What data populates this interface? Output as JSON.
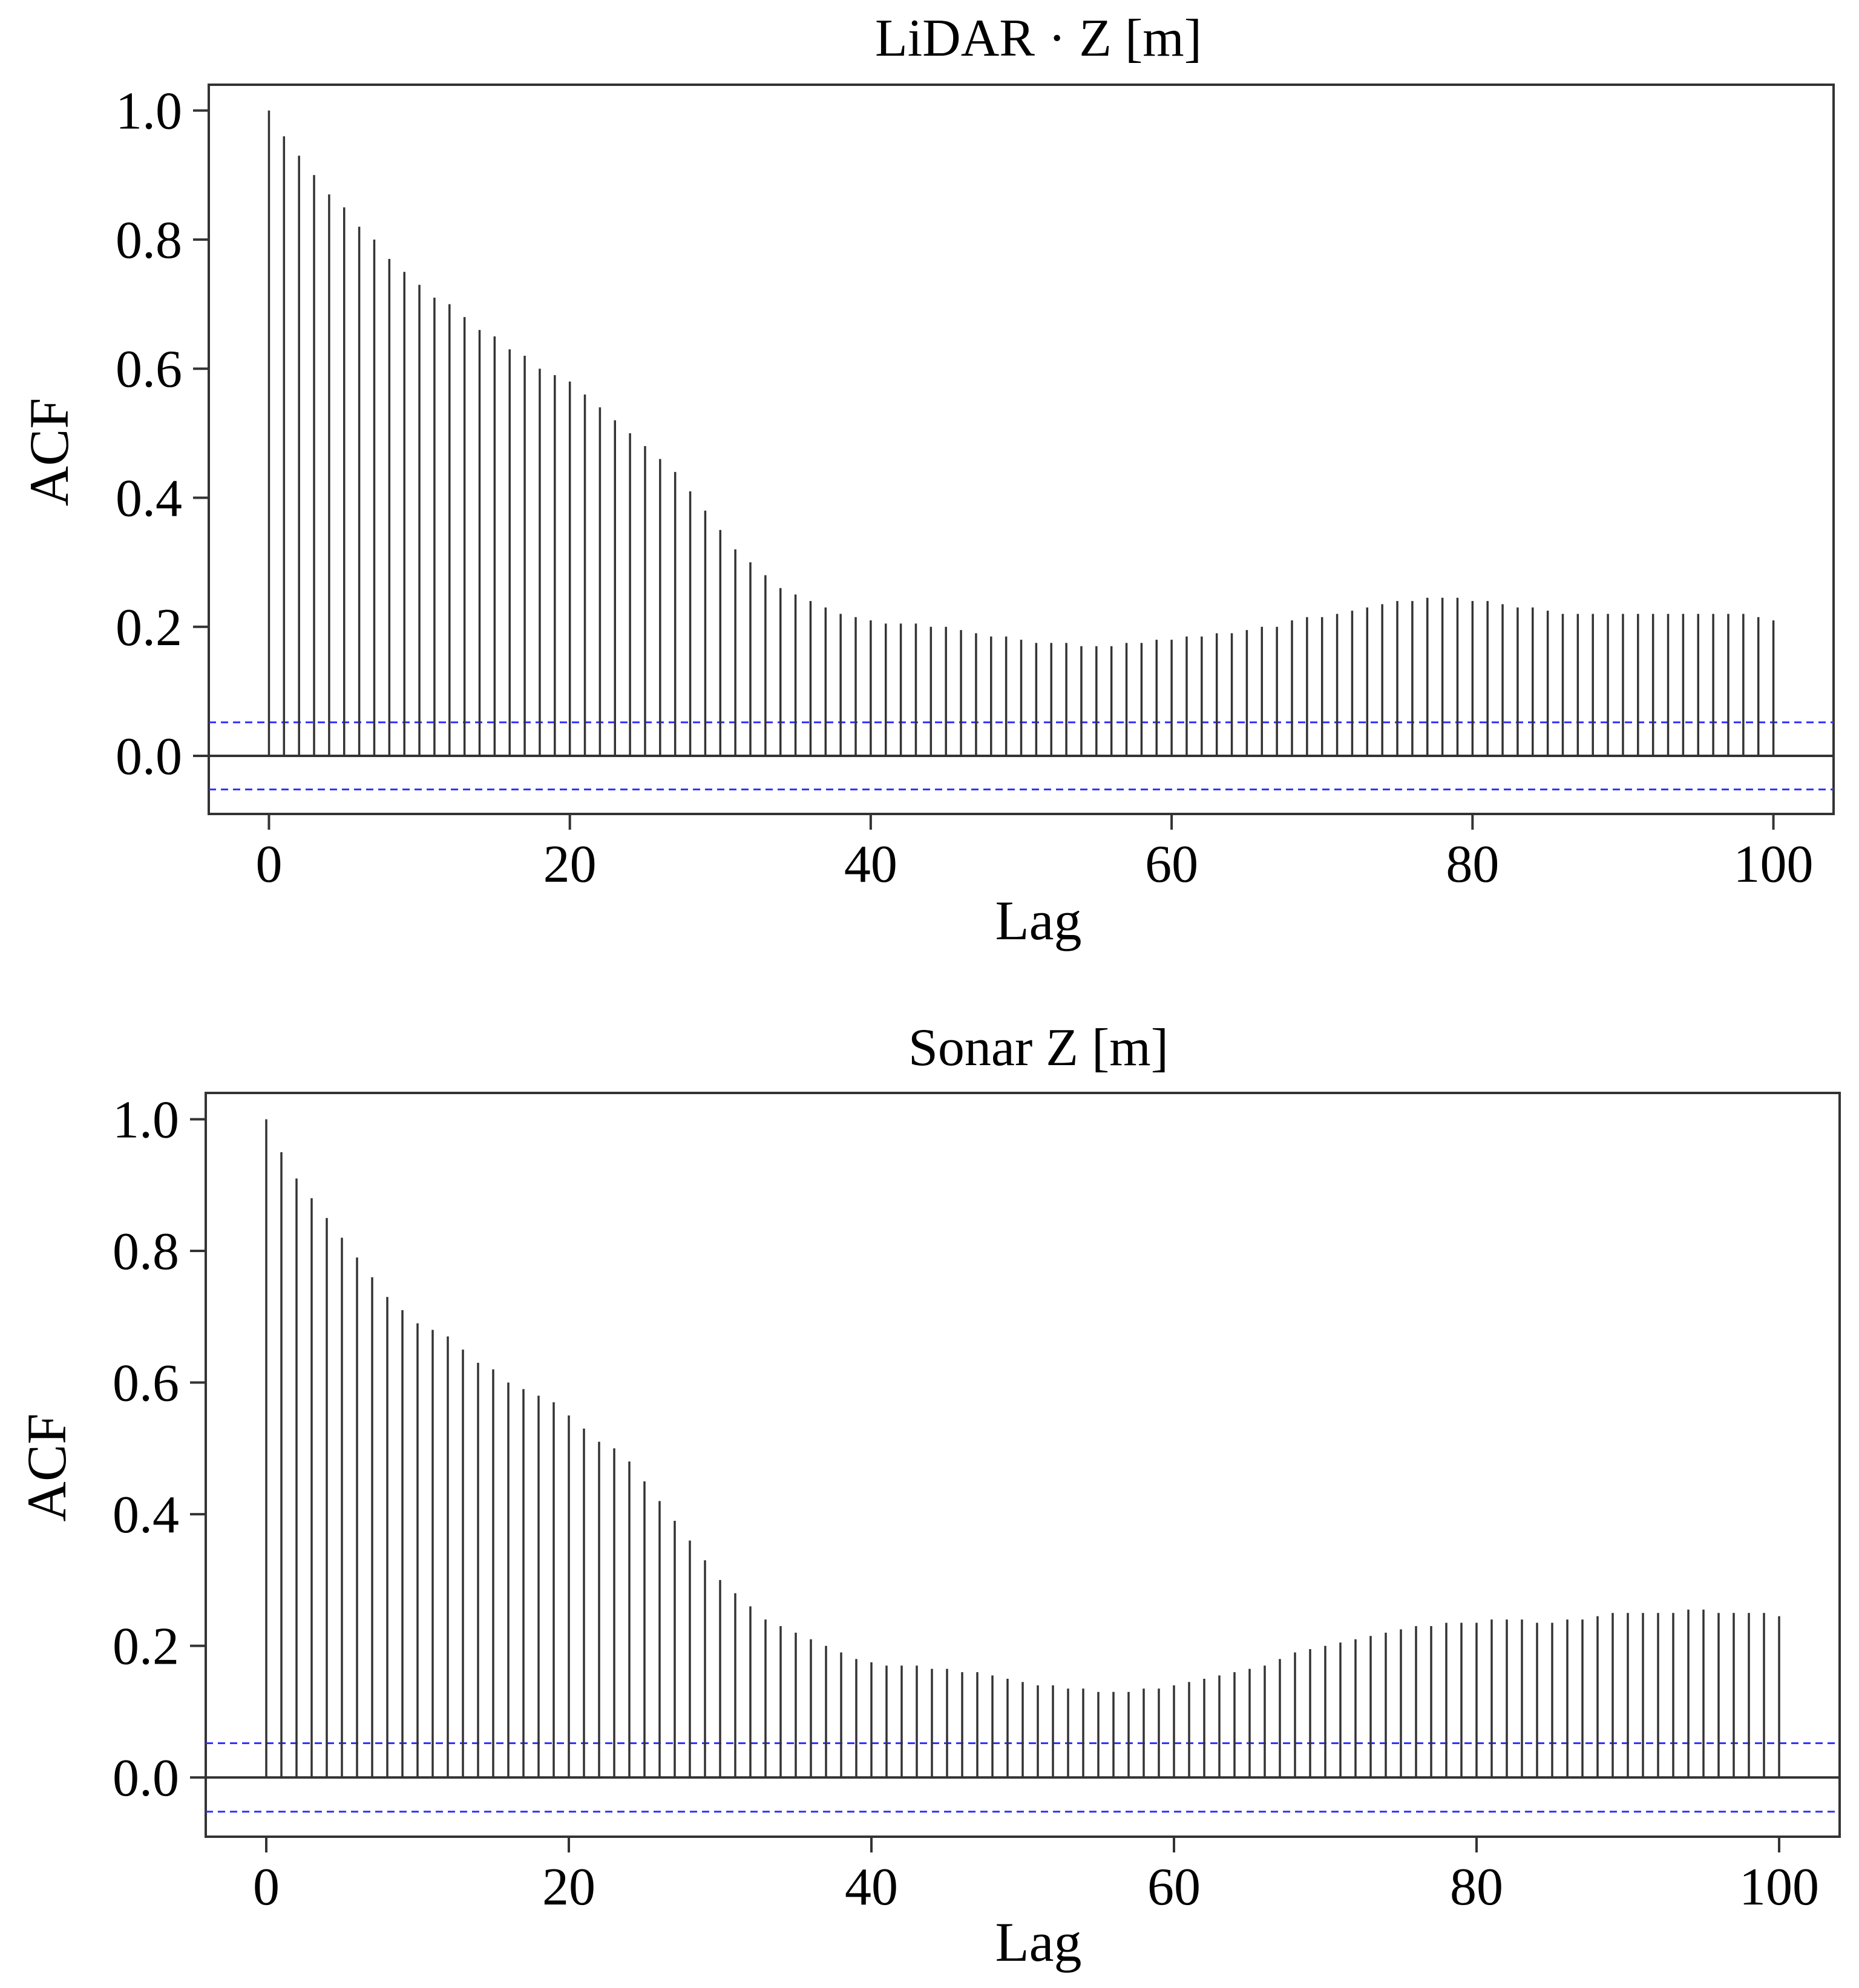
{
  "colors": {
    "spike": "#333333",
    "confidence": "#3333ff",
    "zero_line": "#333333",
    "frame": "#333333"
  },
  "chart_data": [
    {
      "type": "bar",
      "subtype": "acf-spikes",
      "title": "LiDAR · Z [m]",
      "xlabel": "Lag",
      "ylabel": "ACF",
      "xlim": [
        -4,
        104
      ],
      "ylim": [
        -0.09,
        1.04
      ],
      "xticks": [
        0,
        20,
        40,
        60,
        80,
        100
      ],
      "yticks": [
        0.0,
        0.2,
        0.4,
        0.6,
        0.8,
        1.0
      ],
      "x_tick_labels": [
        "0",
        "20",
        "40",
        "60",
        "80",
        "100"
      ],
      "y_tick_labels": [
        "0.0",
        "0.2",
        "0.4",
        "0.6",
        "0.8",
        "1.0"
      ],
      "confidence_band": [
        -0.052,
        0.052
      ],
      "lags_start": 0,
      "values": [
        1.0,
        0.96,
        0.93,
        0.9,
        0.87,
        0.85,
        0.82,
        0.8,
        0.77,
        0.75,
        0.73,
        0.71,
        0.7,
        0.68,
        0.66,
        0.65,
        0.63,
        0.62,
        0.6,
        0.59,
        0.58,
        0.56,
        0.54,
        0.52,
        0.5,
        0.48,
        0.46,
        0.44,
        0.41,
        0.38,
        0.35,
        0.32,
        0.3,
        0.28,
        0.26,
        0.25,
        0.24,
        0.23,
        0.22,
        0.215,
        0.21,
        0.205,
        0.205,
        0.205,
        0.2,
        0.2,
        0.195,
        0.19,
        0.185,
        0.185,
        0.18,
        0.175,
        0.175,
        0.175,
        0.17,
        0.17,
        0.17,
        0.175,
        0.175,
        0.18,
        0.18,
        0.185,
        0.185,
        0.19,
        0.19,
        0.195,
        0.2,
        0.2,
        0.21,
        0.215,
        0.215,
        0.22,
        0.225,
        0.23,
        0.235,
        0.24,
        0.24,
        0.245,
        0.245,
        0.245,
        0.24,
        0.24,
        0.235,
        0.23,
        0.23,
        0.225,
        0.22,
        0.22,
        0.22,
        0.22,
        0.22,
        0.22,
        0.22,
        0.22,
        0.22,
        0.22,
        0.22,
        0.22,
        0.22,
        0.215,
        0.21
      ]
    },
    {
      "type": "bar",
      "subtype": "acf-spikes",
      "title": "Sonar Z [m]",
      "xlabel": "Lag",
      "ylabel": "ACF",
      "xlim": [
        -4,
        104
      ],
      "ylim": [
        -0.09,
        1.04
      ],
      "xticks": [
        0,
        20,
        40,
        60,
        80,
        100
      ],
      "yticks": [
        0.0,
        0.2,
        0.4,
        0.6,
        0.8,
        1.0
      ],
      "x_tick_labels": [
        "0",
        "20",
        "40",
        "60",
        "80",
        "100"
      ],
      "y_tick_labels": [
        "0.0",
        "0.2",
        "0.4",
        "0.6",
        "0.8",
        "1.0"
      ],
      "confidence_band": [
        -0.052,
        0.052
      ],
      "lags_start": 0,
      "values": [
        1.0,
        0.95,
        0.91,
        0.88,
        0.85,
        0.82,
        0.79,
        0.76,
        0.73,
        0.71,
        0.69,
        0.68,
        0.67,
        0.65,
        0.63,
        0.62,
        0.6,
        0.59,
        0.58,
        0.57,
        0.55,
        0.53,
        0.51,
        0.5,
        0.48,
        0.45,
        0.42,
        0.39,
        0.36,
        0.33,
        0.3,
        0.28,
        0.26,
        0.24,
        0.23,
        0.22,
        0.21,
        0.2,
        0.19,
        0.18,
        0.175,
        0.17,
        0.17,
        0.17,
        0.165,
        0.165,
        0.16,
        0.16,
        0.155,
        0.15,
        0.145,
        0.14,
        0.14,
        0.135,
        0.135,
        0.13,
        0.13,
        0.13,
        0.135,
        0.135,
        0.14,
        0.145,
        0.15,
        0.155,
        0.16,
        0.165,
        0.17,
        0.18,
        0.19,
        0.195,
        0.2,
        0.205,
        0.21,
        0.215,
        0.22,
        0.225,
        0.23,
        0.23,
        0.235,
        0.235,
        0.235,
        0.24,
        0.24,
        0.24,
        0.235,
        0.235,
        0.24,
        0.24,
        0.245,
        0.25,
        0.25,
        0.25,
        0.25,
        0.25,
        0.255,
        0.255,
        0.25,
        0.25,
        0.25,
        0.25,
        0.245
      ]
    }
  ]
}
